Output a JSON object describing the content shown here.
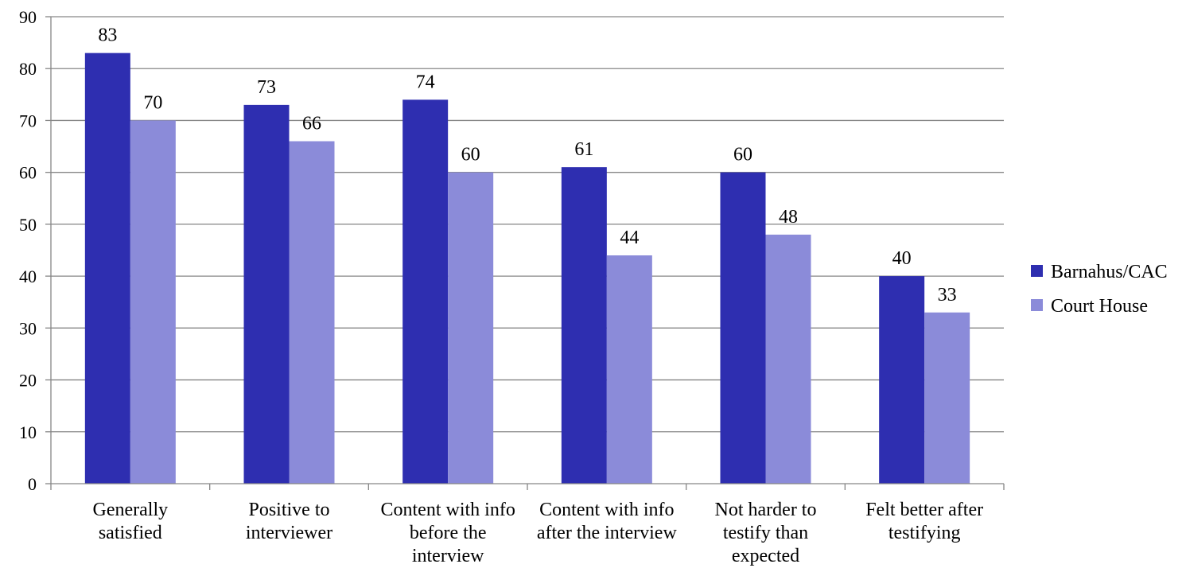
{
  "chart_data": {
    "type": "bar",
    "categories": [
      [
        "Generally",
        "satisfied"
      ],
      [
        "Positive to",
        "interviewer"
      ],
      [
        "Content with info",
        "before the",
        "interview"
      ],
      [
        "Content with info",
        "after the interview"
      ],
      [
        "Not harder to",
        "testify than",
        "expected"
      ],
      [
        "Felt better after",
        "testifying"
      ]
    ],
    "series": [
      {
        "name": "Barnahus/CAC",
        "color": "#2E2EB0",
        "values": [
          83,
          73,
          74,
          61,
          60,
          40
        ]
      },
      {
        "name": "Court House",
        "color": "#8B8BD9",
        "values": [
          70,
          66,
          60,
          44,
          48,
          33
        ]
      }
    ],
    "ylim": [
      0,
      90
    ],
    "yticks": [
      0,
      10,
      20,
      30,
      40,
      50,
      60,
      70,
      80,
      90
    ],
    "grid": true,
    "legend": "right",
    "gridColor": "#868686"
  }
}
